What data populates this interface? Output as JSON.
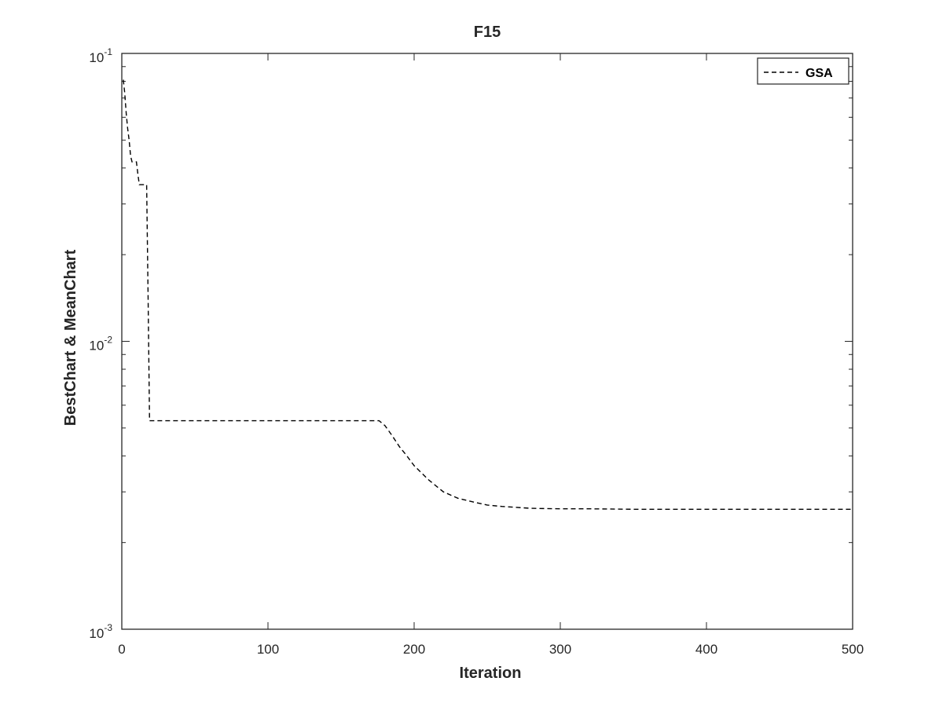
{
  "chart_data": {
    "type": "line",
    "title": "F15",
    "xlabel": "Iteration",
    "ylabel": "BestChart & MeanChart",
    "xlim": [
      0,
      500
    ],
    "ylim": [
      0.001,
      0.1
    ],
    "yscale": "log",
    "grid": false,
    "legend_position": "top-right",
    "x_ticks": [
      0,
      100,
      200,
      300,
      400,
      500
    ],
    "x_tick_labels": [
      "0",
      "100",
      "200",
      "300",
      "400",
      "500"
    ],
    "y_ticks": [
      0.001,
      0.01,
      0.1
    ],
    "y_tick_labels": [
      {
        "base": "10",
        "exp": "-3"
      },
      {
        "base": "10",
        "exp": "-2"
      },
      {
        "base": "10",
        "exp": "-1"
      }
    ],
    "series": [
      {
        "name": "GSA",
        "line_style": "dashed",
        "color": "#000000",
        "x": [
          1,
          2,
          3,
          4,
          5,
          6,
          7,
          8,
          10,
          11,
          12,
          17,
          18,
          19,
          176,
          180,
          185,
          190,
          195,
          200,
          210,
          220,
          230,
          240,
          250,
          260,
          280,
          300,
          320,
          350,
          400,
          450,
          500
        ],
        "y": [
          0.081,
          0.073,
          0.062,
          0.055,
          0.05,
          0.044,
          0.042,
          0.042,
          0.042,
          0.038,
          0.035,
          0.035,
          0.014,
          0.0053,
          0.0053,
          0.0051,
          0.0047,
          0.0043,
          0.004,
          0.0037,
          0.0033,
          0.003,
          0.00285,
          0.00277,
          0.0027,
          0.00267,
          0.00263,
          0.00262,
          0.00262,
          0.00261,
          0.00261,
          0.00261,
          0.00261
        ]
      }
    ]
  }
}
